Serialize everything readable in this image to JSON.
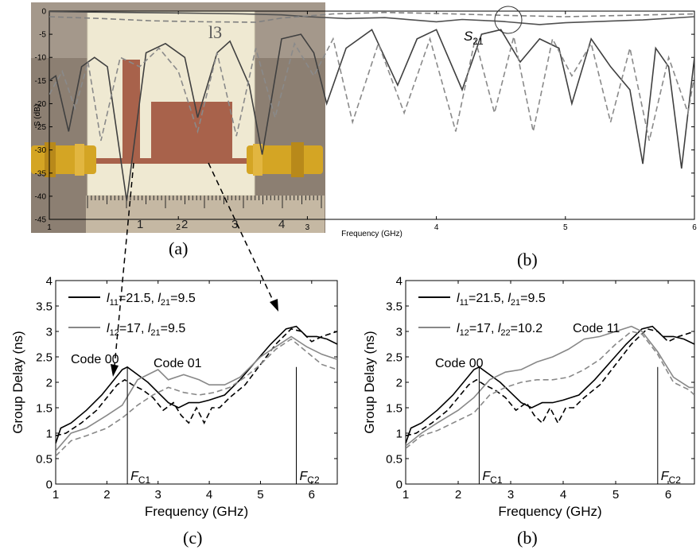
{
  "captions": {
    "a": "(a)",
    "b_top": "(b)",
    "c": "(c)",
    "b_bottom": "(b)"
  },
  "photo": {
    "ruler_numbers": [
      "1",
      "2",
      "3",
      "4"
    ],
    "board_marking": "l3",
    "colors": {
      "board": "#eee8cf",
      "copper": "#a7604a",
      "connector": "#d2a020",
      "background": "#8a7c6e"
    }
  },
  "chart_data": [
    {
      "id": "sparams",
      "type": "line",
      "xlabel": "Frequency (GHz)",
      "ylabel": "S (dB)",
      "xlim": [
        1,
        6
      ],
      "ylim": [
        -45,
        0
      ],
      "xticks": [
        1,
        2,
        3,
        4,
        5,
        6
      ],
      "yticks": [
        0,
        -5,
        -10,
        -15,
        -20,
        -25,
        -30,
        -35,
        -40,
        -45
      ],
      "grid": false,
      "annotation": {
        "text": "S",
        "subscript": "21"
      },
      "series": [
        {
          "style": "solid",
          "color": "#505050",
          "x": [
            1,
            1.3,
            1.6,
            2,
            2.5,
            2.8,
            3,
            3.3,
            3.6,
            4,
            4.2,
            4.5,
            4.8,
            5,
            5.3,
            5.6,
            6
          ],
          "y": [
            -0.1,
            -0.2,
            -0.3,
            -0.4,
            -0.6,
            -0.8,
            -1.2,
            -1.6,
            -1.4,
            -2.3,
            -1.8,
            -2.2,
            -2.9,
            -2.5,
            -2.2,
            -1.9,
            -1.2
          ]
        },
        {
          "style": "dashed",
          "color": "#808080",
          "x": [
            1,
            1.4,
            1.8,
            2.2,
            2.6,
            2.8,
            3.2,
            3.6,
            4,
            4.5,
            5,
            5.5,
            6
          ],
          "y": [
            -1.2,
            -1.6,
            -2.1,
            -2.3,
            -2.4,
            -1.5,
            -0.6,
            -0.3,
            -0.5,
            -0.9,
            -1.2,
            -0.9,
            -0.6
          ]
        },
        {
          "style": "solid",
          "color": "#404040",
          "x": [
            1,
            1.05,
            1.15,
            1.25,
            1.35,
            1.45,
            1.6,
            1.75,
            1.9,
            2.05,
            2.15,
            2.3,
            2.4,
            2.55,
            2.65,
            2.8,
            2.95,
            3.05,
            3.15,
            3.3,
            3.5,
            3.7,
            3.85,
            4,
            4.2,
            4.35,
            4.5,
            4.65,
            4.8,
            4.95,
            5.05,
            5.2,
            5.35,
            5.5,
            5.6,
            5.7,
            5.8,
            5.9,
            6
          ],
          "y": [
            -15,
            -14,
            -26,
            -12,
            -10,
            -12,
            -41,
            -9,
            -7,
            -10,
            -23,
            -9,
            -6.5,
            -16,
            -31,
            -6,
            -5,
            -9,
            -20,
            -8,
            -4,
            -16,
            -6,
            -4,
            -17,
            -5,
            -4,
            -11,
            -6,
            -8,
            -20,
            -6,
            -12,
            -17,
            -33,
            -8,
            -12,
            -34,
            -10
          ]
        },
        {
          "style": "dashed",
          "color": "#8a8a8a",
          "x": [
            1,
            1.1,
            1.2,
            1.3,
            1.4,
            1.55,
            1.7,
            1.85,
            2,
            2.15,
            2.3,
            2.45,
            2.6,
            2.75,
            2.9,
            3.05,
            3.2,
            3.35,
            3.55,
            3.75,
            3.95,
            4.15,
            4.3,
            4.45,
            4.6,
            4.75,
            4.9,
            5.05,
            5.2,
            5.35,
            5.5,
            5.65,
            5.8,
            5.95,
            6
          ],
          "y": [
            -18,
            -13,
            -21,
            -11,
            -28,
            -10,
            -12,
            -8,
            -13,
            -26,
            -9,
            -27,
            -8,
            -23,
            -7,
            -14,
            -6,
            -24,
            -7,
            -22,
            -6,
            -26,
            -6,
            -22,
            -5.5,
            -26,
            -6,
            -14,
            -7,
            -24,
            -8,
            -28,
            -10,
            -22,
            -14
          ]
        }
      ]
    },
    {
      "id": "gd_c",
      "type": "line",
      "xlabel": "Frequency (GHz)",
      "ylabel": "Group Delay (ns)",
      "xlim": [
        1,
        6.5
      ],
      "ylim": [
        0,
        4
      ],
      "xticks": [
        1,
        2,
        3,
        4,
        5,
        6
      ],
      "yticks": [
        0,
        0.5,
        1,
        1.5,
        2,
        2.5,
        3,
        3.5,
        4
      ],
      "grid": false,
      "legend": [
        {
          "pre": "l",
          "sub1": "11",
          "mid": "=21.5, ",
          "pre2": "l",
          "sub2": "21",
          "post": "=9.5",
          "color": "#000000"
        },
        {
          "pre": "l",
          "sub1": "12",
          "mid": "=17, ",
          "pre2": "l",
          "sub2": "21",
          "post": "=9.5",
          "color": "#888888"
        }
      ],
      "annotations": [
        {
          "text": "Code 00"
        },
        {
          "text": "Code 01"
        }
      ],
      "markers": [
        {
          "x": 2.4,
          "label": "F",
          "sub": "C1"
        },
        {
          "x": 5.7,
          "label": "F",
          "sub": "C2"
        }
      ],
      "series": [
        {
          "style": "solid",
          "color": "#000000",
          "x": [
            1,
            1.1,
            1.3,
            1.6,
            1.9,
            2.1,
            2.3,
            2.4,
            2.6,
            2.8,
            3,
            3.2,
            3.4,
            3.6,
            3.8,
            4,
            4.3,
            4.6,
            4.9,
            5.2,
            5.5,
            5.7,
            5.9,
            6.1,
            6.3,
            6.5
          ],
          "y": [
            0.8,
            1.1,
            1.2,
            1.45,
            1.75,
            2.0,
            2.25,
            2.3,
            2.15,
            2.0,
            1.8,
            1.6,
            1.5,
            1.6,
            1.6,
            1.65,
            1.75,
            2.05,
            2.4,
            2.75,
            3.05,
            3.1,
            2.9,
            2.9,
            2.85,
            2.75
          ]
        },
        {
          "style": "dashed",
          "color": "#000000",
          "x": [
            1,
            1.2,
            1.5,
            1.8,
            2.0,
            2.2,
            2.35,
            2.5,
            2.7,
            2.9,
            3.1,
            3.3,
            3.45,
            3.6,
            3.75,
            3.9,
            4.05,
            4.2,
            4.4,
            4.7,
            5.0,
            5.3,
            5.6,
            5.8,
            6.0,
            6.2,
            6.5
          ],
          "y": [
            0.95,
            1.0,
            1.2,
            1.45,
            1.7,
            1.95,
            2.05,
            1.95,
            1.85,
            1.7,
            1.45,
            1.6,
            1.35,
            1.2,
            1.5,
            1.2,
            1.5,
            1.5,
            1.7,
            1.95,
            2.35,
            2.75,
            3.05,
            3.0,
            2.8,
            2.9,
            3.0
          ]
        },
        {
          "style": "solid",
          "color": "#888888",
          "x": [
            1,
            1.3,
            1.6,
            2,
            2.3,
            2.6,
            2.8,
            3,
            3.2,
            3.5,
            3.8,
            4,
            4.3,
            4.6,
            5,
            5.3,
            5.6,
            5.9,
            6.2,
            6.5
          ],
          "y": [
            0.65,
            1.0,
            1.1,
            1.35,
            1.55,
            2.05,
            2.15,
            2.25,
            2.05,
            2.15,
            2.05,
            1.95,
            1.95,
            2.1,
            2.5,
            2.7,
            2.9,
            2.7,
            2.55,
            2.45
          ]
        },
        {
          "style": "dashed",
          "color": "#888888",
          "x": [
            1,
            1.3,
            1.6,
            2,
            2.3,
            2.6,
            2.9,
            3.2,
            3.5,
            3.8,
            4.1,
            4.4,
            4.7,
            5,
            5.3,
            5.6,
            5.9,
            6.2,
            6.5
          ],
          "y": [
            0.55,
            0.85,
            0.95,
            1.1,
            1.3,
            1.55,
            1.75,
            1.9,
            1.8,
            1.75,
            1.8,
            1.9,
            2.1,
            2.35,
            2.65,
            2.85,
            2.6,
            2.35,
            2.25
          ]
        }
      ]
    },
    {
      "id": "gd_b",
      "type": "line",
      "xlabel": "Frequency (GHz)",
      "ylabel": "Group Delay (ns)",
      "xlim": [
        1,
        6.5
      ],
      "ylim": [
        0,
        4
      ],
      "xticks": [
        1,
        2,
        3,
        4,
        5,
        6
      ],
      "yticks": [
        0,
        0.5,
        1,
        1.5,
        2,
        2.5,
        3,
        3.5,
        4
      ],
      "grid": false,
      "legend": [
        {
          "pre": "l",
          "sub1": "11",
          "mid": "=21.5, ",
          "pre2": "l",
          "sub2": "21",
          "post": "=9.5",
          "color": "#000000"
        },
        {
          "pre": "l",
          "sub1": "12",
          "mid": "=17, ",
          "pre2": "l",
          "sub2": "22",
          "post": "=10.2",
          "color": "#888888"
        }
      ],
      "annotations": [
        {
          "text": "Code 11"
        },
        {
          "text": "Code 00"
        }
      ],
      "markers": [
        {
          "x": 2.4,
          "label": "F",
          "sub": "C1"
        },
        {
          "x": 5.8,
          "label": "F",
          "sub": "C2"
        }
      ],
      "series": [
        {
          "style": "solid",
          "color": "#000000",
          "x": [
            1,
            1.1,
            1.3,
            1.6,
            1.9,
            2.1,
            2.3,
            2.4,
            2.6,
            2.8,
            3,
            3.2,
            3.4,
            3.6,
            3.8,
            4,
            4.3,
            4.6,
            4.9,
            5.2,
            5.5,
            5.7,
            5.9,
            6.1,
            6.3,
            6.5
          ],
          "y": [
            0.8,
            1.1,
            1.2,
            1.45,
            1.75,
            2.0,
            2.25,
            2.3,
            2.15,
            2.0,
            1.8,
            1.6,
            1.5,
            1.6,
            1.6,
            1.65,
            1.75,
            2.05,
            2.4,
            2.75,
            3.05,
            3.1,
            2.9,
            2.9,
            2.85,
            2.75
          ]
        },
        {
          "style": "dashed",
          "color": "#000000",
          "x": [
            1,
            1.2,
            1.5,
            1.8,
            2.0,
            2.2,
            2.35,
            2.5,
            2.7,
            2.9,
            3.1,
            3.3,
            3.45,
            3.6,
            3.75,
            3.9,
            4.05,
            4.2,
            4.4,
            4.7,
            5.0,
            5.3,
            5.6,
            5.8,
            6.0,
            6.2,
            6.5
          ],
          "y": [
            0.95,
            1.0,
            1.2,
            1.45,
            1.7,
            1.95,
            2.05,
            1.95,
            1.85,
            1.7,
            1.45,
            1.6,
            1.35,
            1.2,
            1.5,
            1.2,
            1.5,
            1.5,
            1.7,
            1.95,
            2.35,
            2.75,
            3.05,
            3.0,
            2.8,
            2.9,
            3.0
          ]
        },
        {
          "style": "solid",
          "color": "#888888",
          "x": [
            1,
            1.3,
            1.6,
            2,
            2.3,
            2.6,
            2.9,
            3.2,
            3.5,
            3.8,
            4.1,
            4.4,
            4.7,
            5,
            5.3,
            5.5,
            5.8,
            6.1,
            6.4,
            6.5
          ],
          "y": [
            0.75,
            1.0,
            1.2,
            1.45,
            1.7,
            2.05,
            2.2,
            2.25,
            2.4,
            2.5,
            2.65,
            2.85,
            2.9,
            3.0,
            3.1,
            3.0,
            2.6,
            2.1,
            1.9,
            1.9
          ]
        },
        {
          "style": "dashed",
          "color": "#888888",
          "x": [
            1,
            1.3,
            1.6,
            2,
            2.3,
            2.6,
            2.9,
            3.2,
            3.5,
            3.8,
            4.1,
            4.4,
            4.7,
            5,
            5.3,
            5.5,
            5.8,
            6.1,
            6.4,
            6.5
          ],
          "y": [
            0.7,
            0.95,
            1.05,
            1.25,
            1.4,
            1.75,
            1.9,
            2.0,
            2.05,
            2.05,
            2.1,
            2.25,
            2.45,
            2.75,
            3.0,
            2.95,
            2.55,
            2.0,
            1.85,
            1.75
          ]
        }
      ]
    }
  ]
}
